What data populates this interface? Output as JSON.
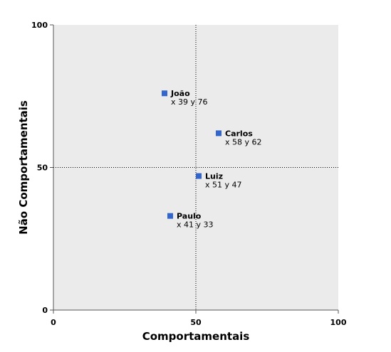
{
  "chart_data": {
    "type": "scatter",
    "xlabel": "Comportamentais",
    "ylabel": "Não Comportamentais",
    "xlim": [
      0,
      100
    ],
    "ylim": [
      0,
      100
    ],
    "xticks": [
      "0",
      "50",
      "100"
    ],
    "yticks": [
      "0",
      "50",
      "100"
    ],
    "xtick_values": [
      0,
      50,
      100
    ],
    "ytick_values": [
      0,
      50,
      100
    ],
    "reference_lines": {
      "x": 50,
      "y": 50
    },
    "plot_background": "#ebebeb",
    "marker_color": "#3366cc",
    "points": [
      {
        "name": "João",
        "x": 39,
        "y": 76,
        "coord_label": "x 39  y 76"
      },
      {
        "name": "Carlos",
        "x": 58,
        "y": 62,
        "coord_label": "x 58  y 62"
      },
      {
        "name": "Luiz",
        "x": 51,
        "y": 47,
        "coord_label": "x 51  y 47"
      },
      {
        "name": "Paulo",
        "x": 41,
        "y": 33,
        "coord_label": "x 41  y 33"
      }
    ]
  }
}
